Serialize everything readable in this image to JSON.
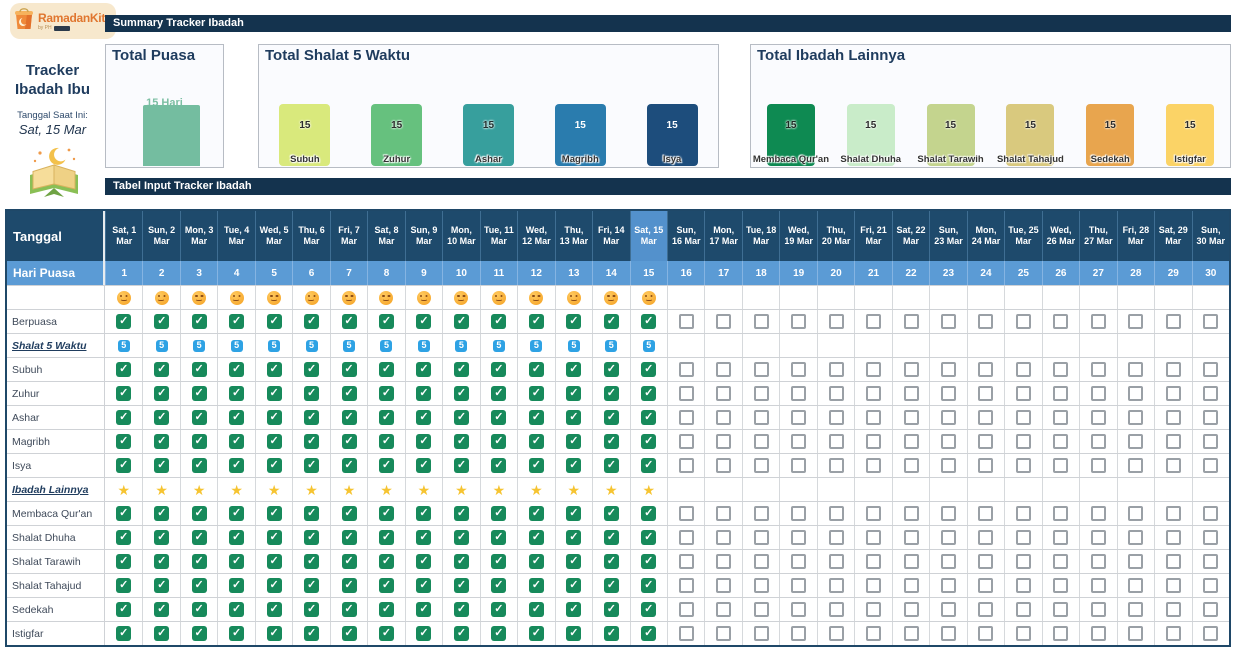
{
  "logo": {
    "title": "RamadanKit",
    "byline": "by PH"
  },
  "sidebar": {
    "title": "Tracker Ibadah Ibu",
    "date_label": "Tanggal Saat Ini:",
    "date_value": "Sat, 15 Mar"
  },
  "summary": {
    "header": "Summary Tracker Ibadah",
    "puasa": {
      "title": "Total Puasa",
      "value": 15,
      "value_label": "15 Hari",
      "bar_color": "#74bda0"
    },
    "shalat": {
      "title": "Total Shalat 5 Waktu",
      "bars": [
        {
          "label": "Subuh",
          "value": 15,
          "color": "#d9e97c",
          "value_color": "#2b2b2b"
        },
        {
          "label": "Zuhur",
          "value": 15,
          "color": "#66c17e",
          "value_color": "#2b2b2b"
        },
        {
          "label": "Ashar",
          "value": 15,
          "color": "#379f9d",
          "value_color": "#22302f"
        },
        {
          "label": "Magribh",
          "value": 15,
          "color": "#2a7cae",
          "value_color": "#ffffff"
        },
        {
          "label": "Isya",
          "value": 15,
          "color": "#1d4d7c",
          "value_color": "#ffffff"
        }
      ]
    },
    "ibadah": {
      "title": "Total Ibadah Lainnya",
      "bars": [
        {
          "label": "Membaca Qur'an",
          "value": 15,
          "color": "#0e8a52",
          "value_color": "#1e2a24"
        },
        {
          "label": "Shalat Dhuha",
          "value": 15,
          "color": "#c9ecc9",
          "value_color": "#2b2b2b"
        },
        {
          "label": "Shalat Tarawih",
          "value": 15,
          "color": "#c4d48e",
          "value_color": "#2b2b2b"
        },
        {
          "label": "Shalat Tahajud",
          "value": 15,
          "color": "#d9c97e",
          "value_color": "#2b2b2b"
        },
        {
          "label": "Sedekah",
          "value": 15,
          "color": "#e8a54e",
          "value_color": "#2b2b2b"
        },
        {
          "label": "Istigfar",
          "value": 15,
          "color": "#fbd366",
          "value_color": "#2b2b2b"
        }
      ]
    }
  },
  "table": {
    "header": "Tabel Input Tracker Ibadah",
    "corner_label": "Tanggal",
    "hari_label": "Hari Puasa",
    "today": 15,
    "filled_through": 15,
    "days": [
      "Sat, 1 Mar",
      "Sun, 2 Mar",
      "Mon, 3 Mar",
      "Tue, 4 Mar",
      "Wed, 5 Mar",
      "Thu, 6 Mar",
      "Fri, 7 Mar",
      "Sat, 8 Mar",
      "Sun, 9 Mar",
      "Mon, 10 Mar",
      "Tue, 11 Mar",
      "Wed, 12 Mar",
      "Thu, 13 Mar",
      "Fri, 14 Mar",
      "Sat, 15 Mar",
      "Sun, 16 Mar",
      "Mon, 17 Mar",
      "Tue, 18 Mar",
      "Wed, 19 Mar",
      "Thu, 20 Mar",
      "Fri, 21 Mar",
      "Sat, 22 Mar",
      "Sun, 23 Mar",
      "Mon, 24 Mar",
      "Tue, 25 Mar",
      "Wed, 26 Mar",
      "Thu, 27 Mar",
      "Fri, 28 Mar",
      "Sat, 29 Mar",
      "Sun, 30 Mar"
    ],
    "day_numbers_start": 1,
    "day_numbers_end": 30,
    "rows": [
      {
        "key": "mood",
        "label": "",
        "type": "emoji",
        "icon": "smiley"
      },
      {
        "key": "berpuasa",
        "label": "Berpuasa",
        "type": "normal",
        "icon": "checkbox"
      },
      {
        "key": "shalat-5-waktu",
        "label": "Shalat 5 Waktu",
        "type": "section",
        "icon": "five"
      },
      {
        "key": "subuh",
        "label": "Subuh",
        "type": "normal",
        "icon": "checkbox"
      },
      {
        "key": "zuhur",
        "label": "Zuhur",
        "type": "normal",
        "icon": "checkbox"
      },
      {
        "key": "ashar",
        "label": "Ashar",
        "type": "normal",
        "icon": "checkbox"
      },
      {
        "key": "magribh",
        "label": "Magribh",
        "type": "normal",
        "icon": "checkbox"
      },
      {
        "key": "isya",
        "label": "Isya",
        "type": "normal",
        "icon": "checkbox"
      },
      {
        "key": "ibadah-lainnya",
        "label": "Ibadah Lainnya",
        "type": "section",
        "icon": "star"
      },
      {
        "key": "membaca-quran",
        "label": "Membaca Qur'an",
        "type": "normal",
        "icon": "checkbox"
      },
      {
        "key": "shalat-dhuha",
        "label": "Shalat Dhuha",
        "type": "normal",
        "icon": "checkbox"
      },
      {
        "key": "shalat-tarawih",
        "label": "Shalat Tarawih",
        "type": "normal",
        "icon": "checkbox"
      },
      {
        "key": "shalat-tahajud",
        "label": "Shalat Tahajud",
        "type": "normal",
        "icon": "checkbox"
      },
      {
        "key": "sedekah",
        "label": "Sedekah",
        "type": "normal",
        "icon": "checkbox"
      },
      {
        "key": "istigfar",
        "label": "Istigfar",
        "type": "normal",
        "icon": "checkbox"
      }
    ]
  }
}
